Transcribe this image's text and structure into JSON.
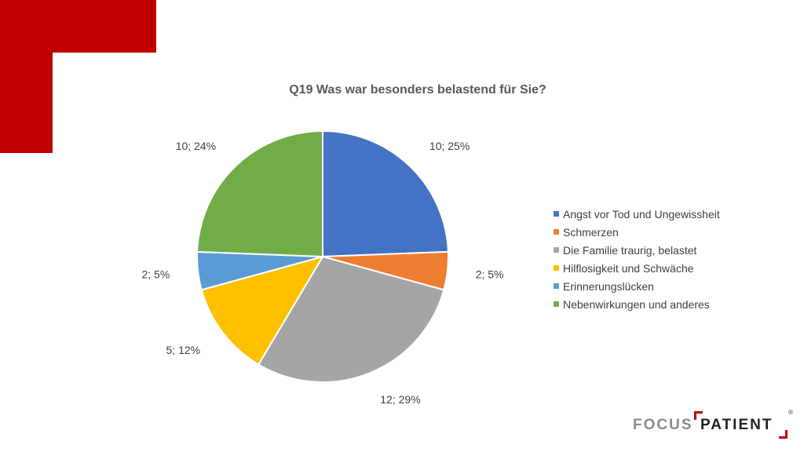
{
  "chart_data": {
    "type": "pie",
    "title": "Q19 Was war besonders belastend für Sie?",
    "categories": [
      "Angst vor Tod und Ungewissheit",
      "Schmerzen",
      "Die Familie traurig, belastet",
      "Hilflosigkeit und Schwäche",
      "Erinnerungslücken",
      "Nebenwirkungen und anderes"
    ],
    "values": [
      10,
      2,
      12,
      5,
      2,
      10
    ],
    "labels": [
      "10; 25%",
      "2; 5%",
      "12; 29%",
      "5; 12%",
      "2; 5%",
      "10; 24%"
    ],
    "colors": [
      "#4472c4",
      "#ed7d31",
      "#a5a5a5",
      "#ffc000",
      "#5b9bd5",
      "#70ad47"
    ],
    "legend_position": "right"
  },
  "brand": {
    "focus": "FOCUS",
    "patient": "PATIENT",
    "registered": "®",
    "accent": "#c00000"
  }
}
